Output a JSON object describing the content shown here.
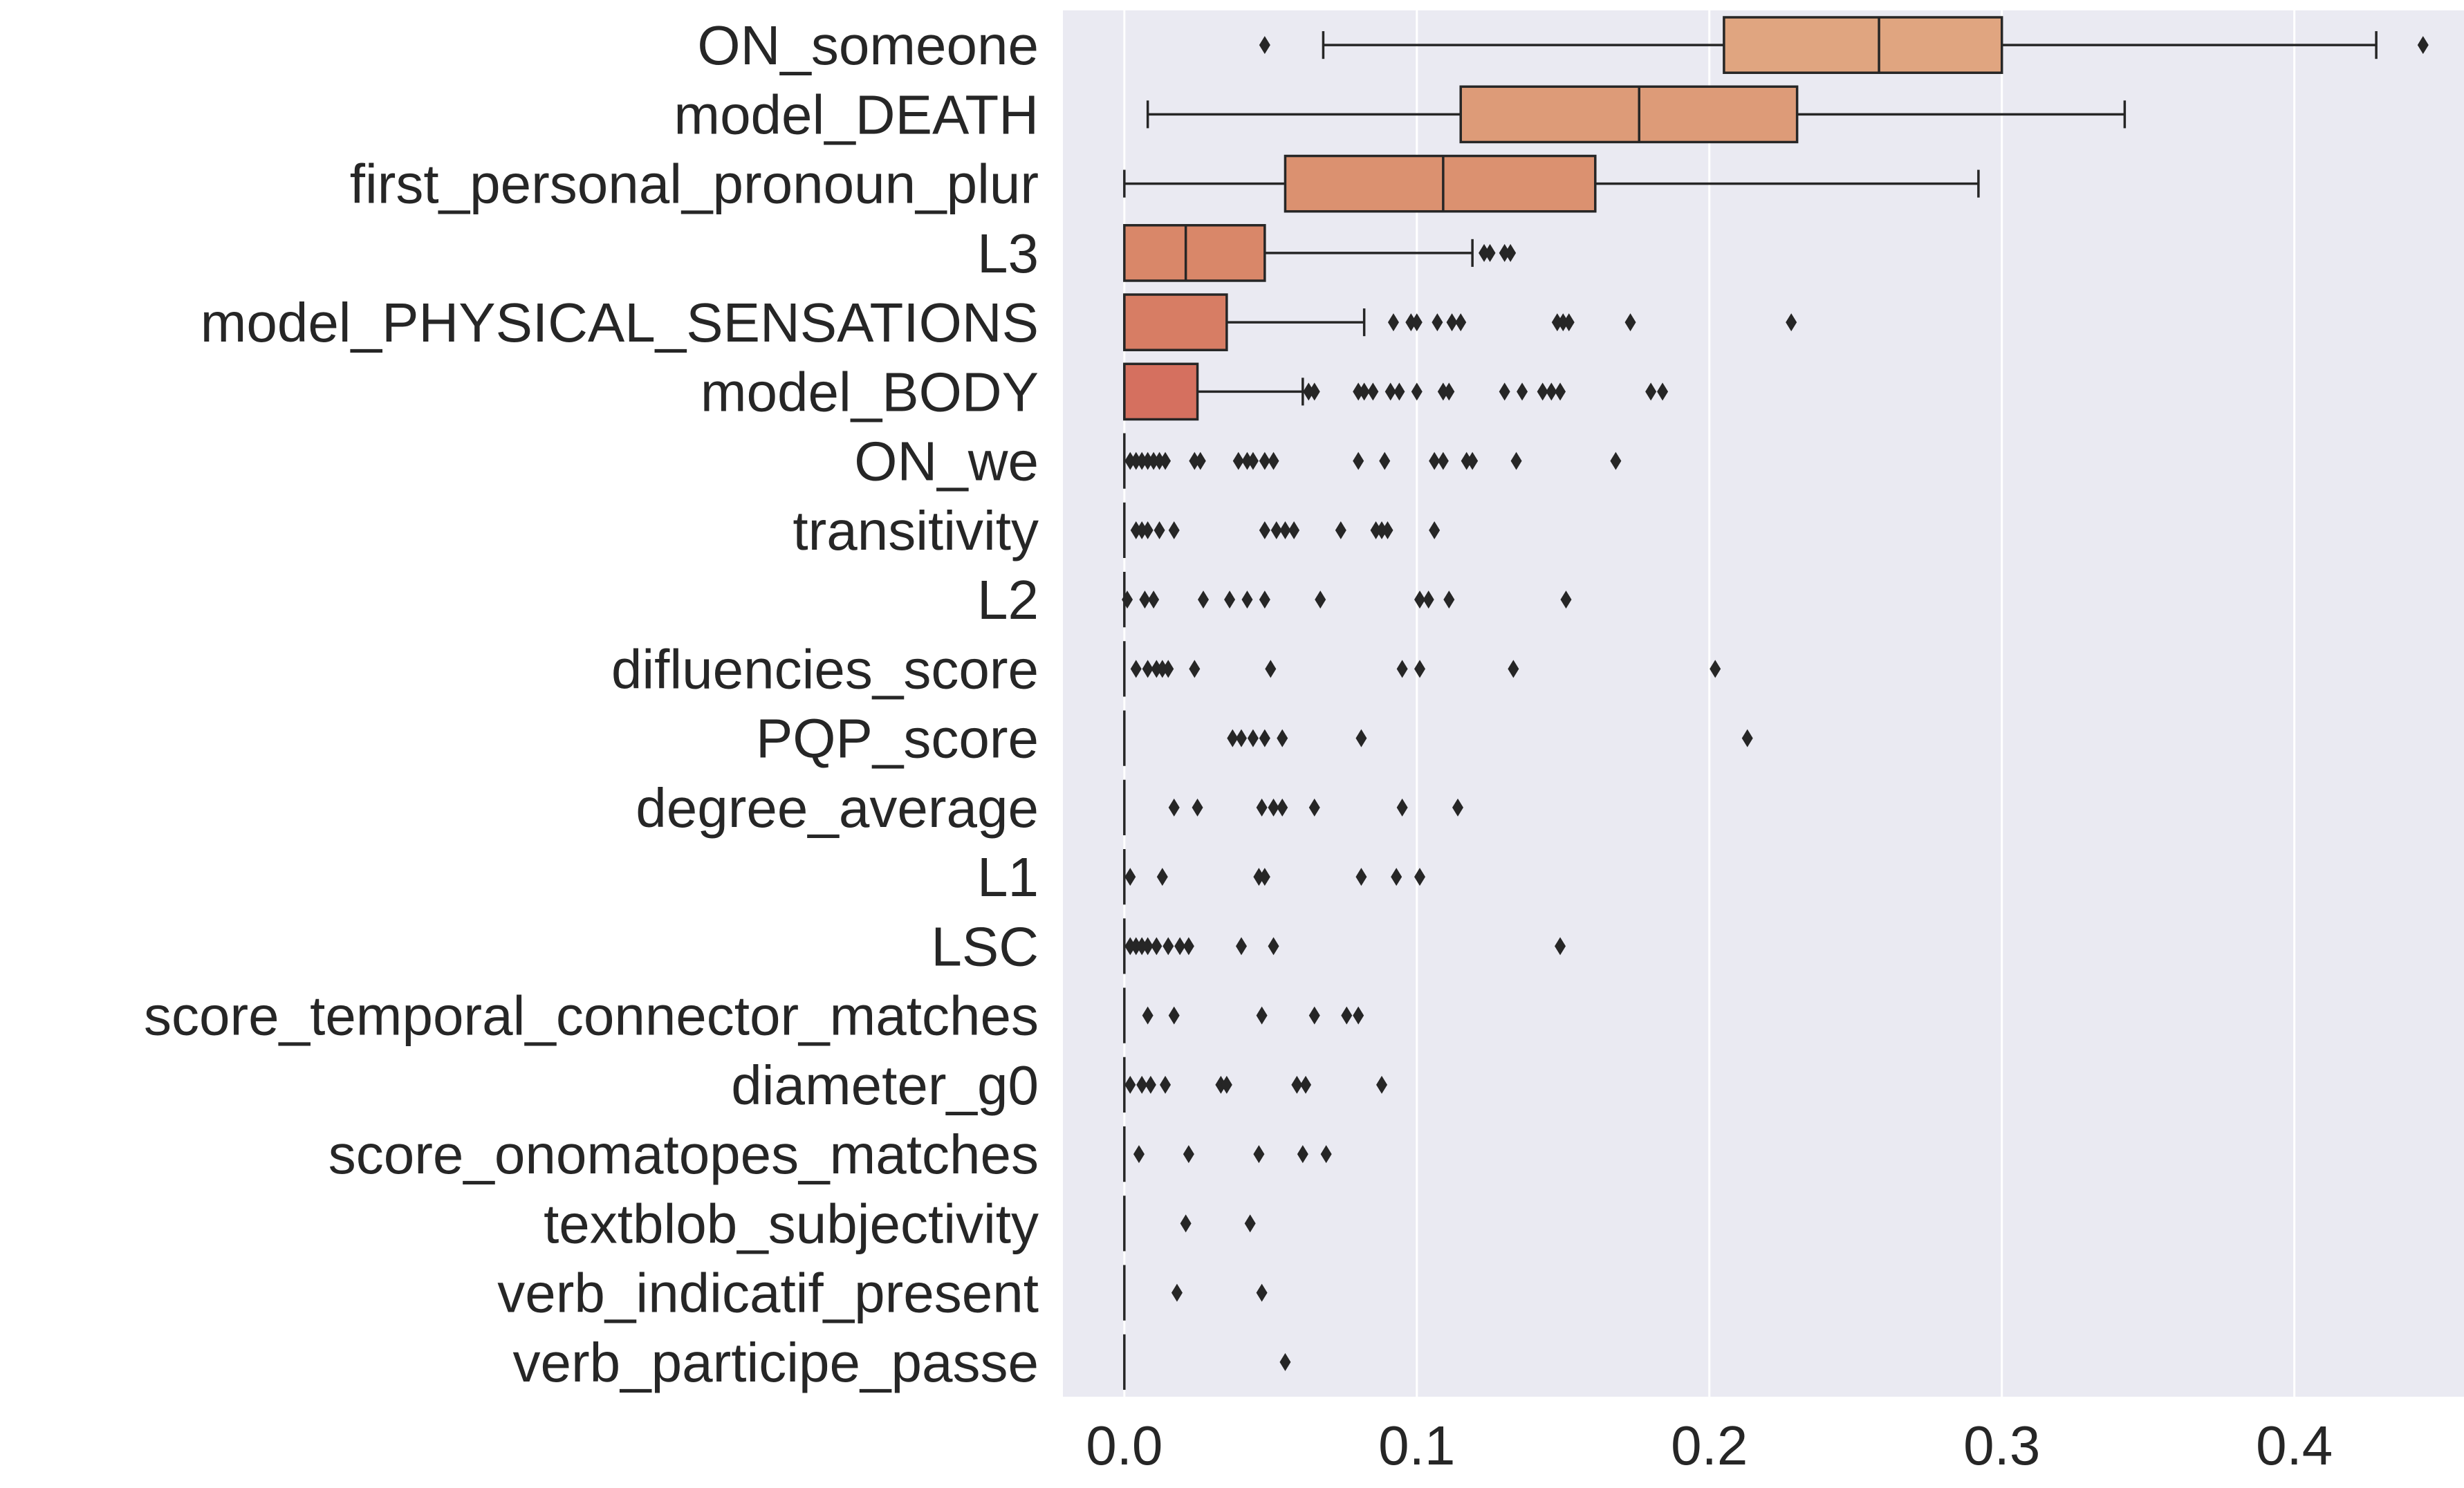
{
  "chart_data": {
    "type": "box",
    "orientation": "horizontal",
    "title": "",
    "xlabel": "",
    "ylabel": "",
    "xlim": [
      -0.021,
      0.458
    ],
    "xticks": [
      0.0,
      0.1,
      0.2,
      0.3,
      0.4
    ],
    "xtick_labels": [
      "0.0",
      "0.1",
      "0.2",
      "0.3",
      "0.4"
    ],
    "grid": true,
    "background": "#eaeaf2",
    "grid_color": "#ffffff",
    "line_color": "#262626",
    "categories": [
      "ON_someone",
      "model_DEATH",
      "first_personal_pronoun_plur",
      "L3",
      "model_PHYSICAL_SENSATIONS",
      "model_BODY",
      "ON_we",
      "transitivity",
      "L2",
      "difluencies_score",
      "PQP_score",
      "degree_average",
      "L1",
      "LSC",
      "score_temporal_connector_matches",
      "diameter_g0",
      "score_onomatopes_matches",
      "textblob_subjectivity",
      "verb_indicatif_present",
      "verb_participe_passe"
    ],
    "boxes": [
      {
        "color": "#e0a580",
        "whislo": 0.068,
        "q1": 0.205,
        "med": 0.258,
        "q3": 0.3,
        "whishi": 0.428,
        "fliers": [
          0.048,
          0.444
        ]
      },
      {
        "color": "#dd9b78",
        "whislo": 0.008,
        "q1": 0.115,
        "med": 0.176,
        "q3": 0.23,
        "whishi": 0.342,
        "fliers": []
      },
      {
        "color": "#db9170",
        "whislo": 0.0,
        "q1": 0.055,
        "med": 0.109,
        "q3": 0.161,
        "whishi": 0.292,
        "fliers": []
      },
      {
        "color": "#d98769",
        "whislo": 0.0,
        "q1": 0.0,
        "med": 0.021,
        "q3": 0.048,
        "whishi": 0.119,
        "fliers": [
          0.123,
          0.125,
          0.13,
          0.132
        ]
      },
      {
        "color": "#d77d64",
        "whislo": 0.0,
        "q1": 0.0,
        "med": 0.0,
        "q3": 0.035,
        "whishi": 0.082,
        "fliers": [
          0.092,
          0.098,
          0.1,
          0.107,
          0.112,
          0.115,
          0.148,
          0.15,
          0.152,
          0.173,
          0.228
        ]
      },
      {
        "color": "#d5705f",
        "whislo": 0.0,
        "q1": 0.0,
        "med": 0.0,
        "q3": 0.025,
        "whishi": 0.061,
        "fliers": [
          0.063,
          0.065,
          0.08,
          0.082,
          0.085,
          0.091,
          0.094,
          0.1,
          0.109,
          0.111,
          0.13,
          0.136,
          0.143,
          0.146,
          0.149,
          0.18,
          0.184
        ]
      },
      {
        "color": "#d46b5b",
        "whislo": 0.0,
        "q1": 0.0,
        "med": 0.0,
        "q3": 0.0,
        "whishi": 0.0,
        "fliers": [
          0.002,
          0.004,
          0.006,
          0.008,
          0.01,
          0.012,
          0.014,
          0.024,
          0.026,
          0.039,
          0.042,
          0.044,
          0.048,
          0.051,
          0.08,
          0.089,
          0.106,
          0.109,
          0.117,
          0.119,
          0.134,
          0.168
        ]
      },
      {
        "color": "#d46b5b",
        "whislo": 0.0,
        "q1": 0.0,
        "med": 0.0,
        "q3": 0.0,
        "whishi": 0.0,
        "fliers": [
          0.004,
          0.006,
          0.008,
          0.012,
          0.017,
          0.048,
          0.052,
          0.055,
          0.058,
          0.074,
          0.086,
          0.088,
          0.09,
          0.106
        ]
      },
      {
        "color": "#d46b5b",
        "whislo": 0.0,
        "q1": 0.0,
        "med": 0.0,
        "q3": 0.0,
        "whishi": 0.0,
        "fliers": [
          0.001,
          0.007,
          0.01,
          0.027,
          0.036,
          0.042,
          0.048,
          0.067,
          0.101,
          0.104,
          0.111,
          0.151
        ]
      },
      {
        "color": "#d46b5b",
        "whislo": 0.0,
        "q1": 0.0,
        "med": 0.0,
        "q3": 0.0,
        "whishi": 0.0,
        "fliers": [
          0.004,
          0.008,
          0.011,
          0.013,
          0.015,
          0.024,
          0.05,
          0.095,
          0.101,
          0.133,
          0.202
        ]
      },
      {
        "color": "#d46b5b",
        "whislo": 0.0,
        "q1": 0.0,
        "med": 0.0,
        "q3": 0.0,
        "whishi": 0.0,
        "fliers": [
          0.037,
          0.04,
          0.044,
          0.048,
          0.054,
          0.081,
          0.213
        ]
      },
      {
        "color": "#d46b5b",
        "whislo": 0.0,
        "q1": 0.0,
        "med": 0.0,
        "q3": 0.0,
        "whishi": 0.0,
        "fliers": [
          0.017,
          0.025,
          0.047,
          0.051,
          0.054,
          0.065,
          0.095,
          0.114
        ]
      },
      {
        "color": "#d46b5b",
        "whislo": 0.0,
        "q1": 0.0,
        "med": 0.0,
        "q3": 0.0,
        "whishi": 0.0,
        "fliers": [
          0.002,
          0.013,
          0.046,
          0.048,
          0.081,
          0.093,
          0.101
        ]
      },
      {
        "color": "#d46b5b",
        "whislo": 0.0,
        "q1": 0.0,
        "med": 0.0,
        "q3": 0.0,
        "whishi": 0.0,
        "fliers": [
          0.002,
          0.004,
          0.006,
          0.008,
          0.011,
          0.015,
          0.019,
          0.022,
          0.04,
          0.051,
          0.149
        ]
      },
      {
        "color": "#d46b5b",
        "whislo": 0.0,
        "q1": 0.0,
        "med": 0.0,
        "q3": 0.0,
        "whishi": 0.0,
        "fliers": [
          0.008,
          0.017,
          0.047,
          0.065,
          0.076,
          0.08
        ]
      },
      {
        "color": "#d46b5b",
        "whislo": 0.0,
        "q1": 0.0,
        "med": 0.0,
        "q3": 0.0,
        "whishi": 0.0,
        "fliers": [
          0.002,
          0.006,
          0.009,
          0.014,
          0.033,
          0.035,
          0.059,
          0.062,
          0.088
        ]
      },
      {
        "color": "#d46b5b",
        "whislo": 0.0,
        "q1": 0.0,
        "med": 0.0,
        "q3": 0.0,
        "whishi": 0.0,
        "fliers": [
          0.005,
          0.022,
          0.046,
          0.061,
          0.069
        ]
      },
      {
        "color": "#d46b5b",
        "whislo": 0.0,
        "q1": 0.0,
        "med": 0.0,
        "q3": 0.0,
        "whishi": 0.0,
        "fliers": [
          0.021,
          0.043
        ]
      },
      {
        "color": "#d46b5b",
        "whislo": 0.0,
        "q1": 0.0,
        "med": 0.0,
        "q3": 0.0,
        "whishi": 0.0,
        "fliers": [
          0.018,
          0.047
        ]
      },
      {
        "color": "#d46b5b",
        "whislo": 0.0,
        "q1": 0.0,
        "med": 0.0,
        "q3": 0.0,
        "whishi": 0.0,
        "fliers": [
          0.055
        ]
      }
    ]
  }
}
